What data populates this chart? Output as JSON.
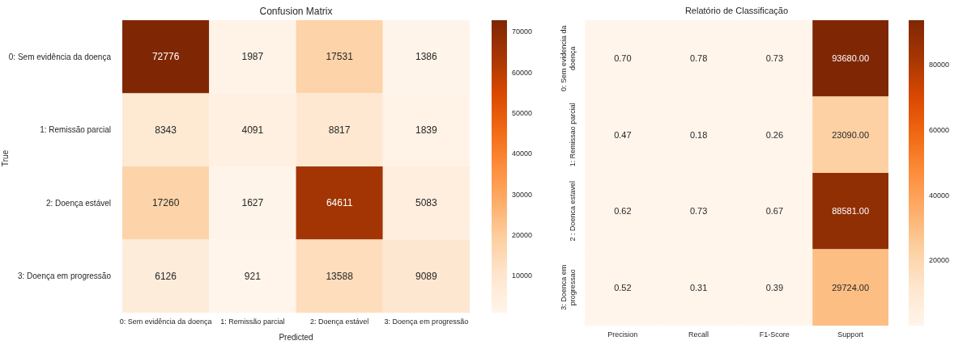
{
  "chart_data": [
    {
      "type": "heatmap",
      "title": "Confusion Matrix",
      "xlabel": "Predicted",
      "ylabel": "True",
      "categories": [
        "0: Sem evidência da doença",
        "1: Remissão parcial",
        "2: Doença estável",
        "3: Doença em progressão"
      ],
      "y_categories": [
        "0: Sem evidência da doença",
        "1: Remissão parcial",
        "2: Doença estável",
        "3: Doença em progressão"
      ],
      "cells": [
        [
          72776,
          1987,
          17531,
          1386
        ],
        [
          8343,
          4091,
          8817,
          1839
        ],
        [
          17260,
          1627,
          64611,
          5083
        ],
        [
          6126,
          921,
          13588,
          9089
        ]
      ],
      "data_labels": true,
      "clim": [
        921,
        72776
      ],
      "cticks": [
        10000,
        20000,
        30000,
        40000,
        50000,
        60000,
        70000
      ]
    },
    {
      "type": "heatmap",
      "title": "Relatório de Classificação",
      "categories": [
        "Precision",
        "Recall",
        "F1-Score",
        "Support"
      ],
      "y_categories": [
        "0: Sem evidencia da doença",
        "1: Remissao parcial",
        "2 : Doenca estavel",
        "3: Doenca em progressao"
      ],
      "cells": [
        [
          0.7,
          0.78,
          0.73,
          93680
        ],
        [
          0.47,
          0.18,
          0.26,
          23090
        ],
        [
          0.62,
          0.73,
          0.67,
          88581
        ],
        [
          0.52,
          0.31,
          0.39,
          29724
        ]
      ],
      "cell_labels": [
        [
          "0.70",
          "0.78",
          "0.73",
          "93680.00"
        ],
        [
          "0.47",
          "0.18",
          "0.26",
          "23090.00"
        ],
        [
          "0.62",
          "0.73",
          "0.67",
          "88581.00"
        ],
        [
          "0.52",
          "0.31",
          "0.39",
          "29724.00"
        ]
      ],
      "clim": [
        0.18,
        93680
      ],
      "cticks": [
        20000,
        40000,
        60000,
        80000
      ]
    }
  ]
}
